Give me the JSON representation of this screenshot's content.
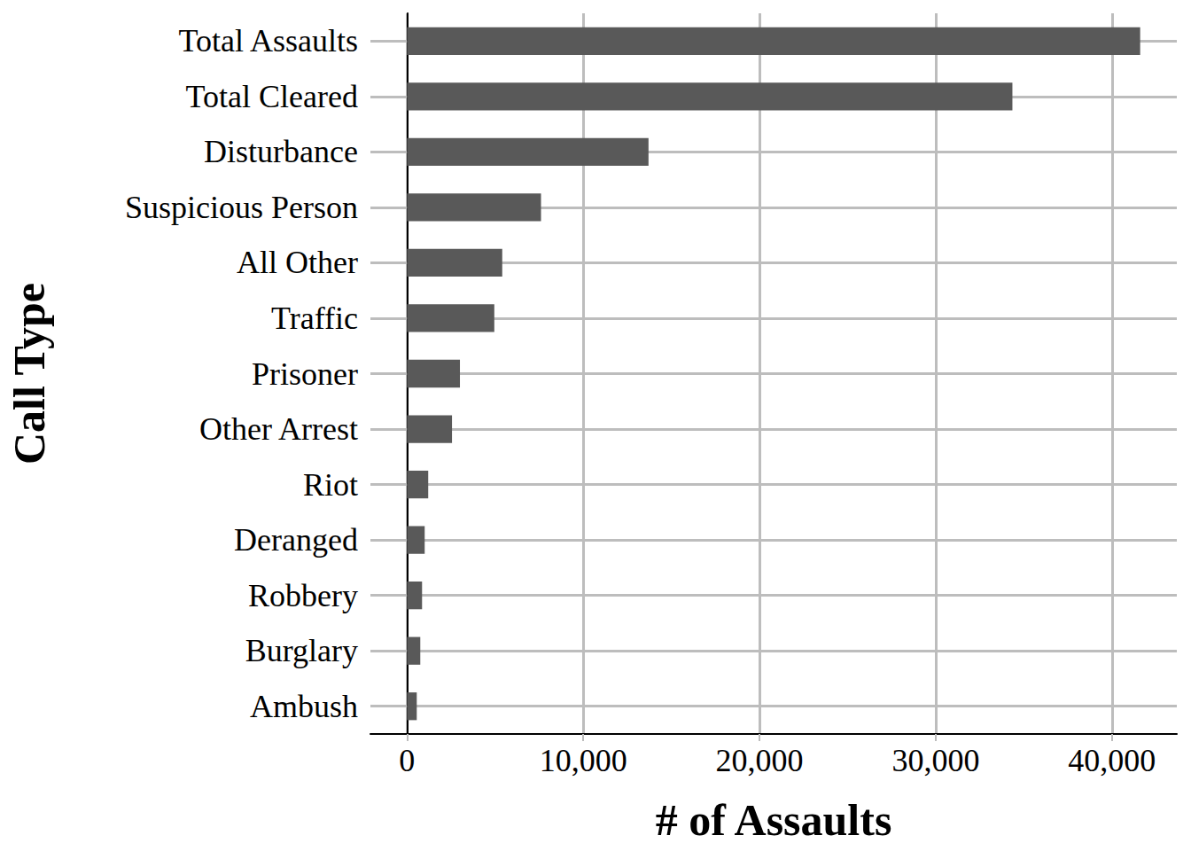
{
  "chart_data": {
    "type": "bar",
    "orientation": "horizontal",
    "x_label": "# of Assaults",
    "y_label": "Call Type",
    "categories": [
      "Total Assaults",
      "Total Cleared",
      "Disturbance",
      "Suspicious Person",
      "All Other",
      "Traffic",
      "Prisoner",
      "Other Arrest",
      "Riot",
      "Deranged",
      "Robbery",
      "Burglary",
      "Ambush"
    ],
    "values": [
      41600,
      34350,
      13700,
      7600,
      5400,
      4950,
      3000,
      2550,
      1200,
      1000,
      850,
      750,
      550
    ],
    "color": "#595959",
    "xlim": [
      -2080,
      43680
    ],
    "xticks": [
      0,
      {
        "value": 10000,
        "label": "10,000"
      },
      {
        "value": 20000,
        "label": "20,000"
      },
      {
        "value": 30000,
        "label": "30,000"
      },
      {
        "value": 40000,
        "label": "40,000"
      }
    ],
    "grid": true
  }
}
